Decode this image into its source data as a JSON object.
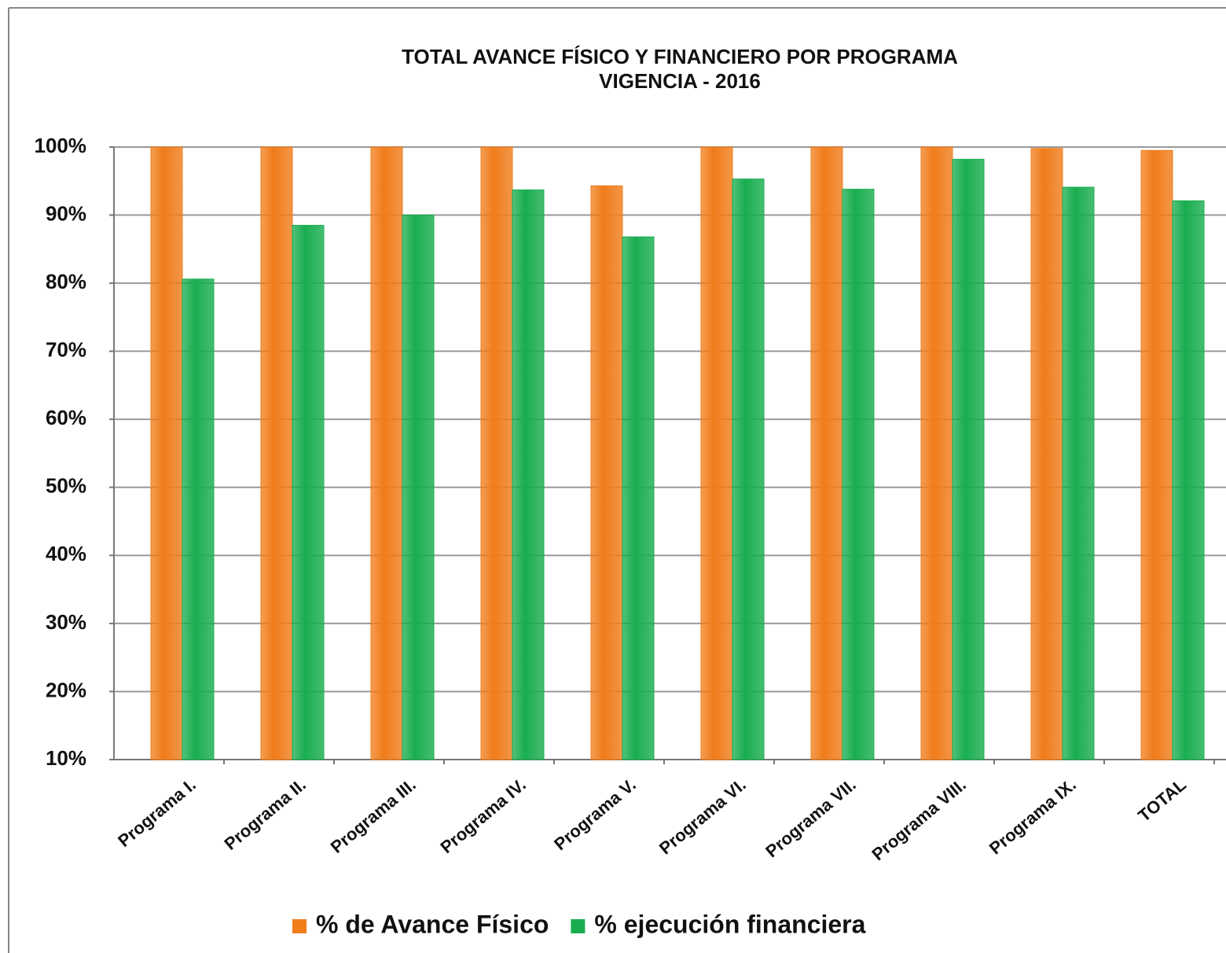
{
  "chart_data": {
    "type": "bar",
    "title": "TOTAL AVANCE FÍSICO Y FINANCIERO POR PROGRAMA",
    "subtitle": "VIGENCIA  - 2016",
    "categories": [
      "Programa I.",
      "Programa II.",
      "Programa III.",
      "Programa IV.",
      "Programa V.",
      "Programa VI.",
      "Programa VII.",
      "Programa VIII.",
      "Programa IX.",
      "TOTAL"
    ],
    "series": [
      {
        "name": "% de Avance Físico",
        "color": "#f07c1a",
        "values": [
          100,
          100,
          100,
          100,
          94.3,
          100,
          100,
          100,
          99.8,
          99.5
        ]
      },
      {
        "name": "% ejecución financiera",
        "color": "#19ad4f",
        "values": [
          80.6,
          88.5,
          90,
          93.7,
          86.8,
          95.3,
          93.8,
          98.2,
          94.1,
          92.1
        ]
      }
    ],
    "ylim": [
      10,
      100
    ],
    "yticks": [
      {
        "value": 10,
        "label": "10%"
      },
      {
        "value": 20,
        "label": "20%"
      },
      {
        "value": 30,
        "label": "30%"
      },
      {
        "value": 40,
        "label": "40%"
      },
      {
        "value": 50,
        "label": "50%"
      },
      {
        "value": 60,
        "label": "60%"
      },
      {
        "value": 70,
        "label": "70%"
      },
      {
        "value": 80,
        "label": "80%"
      },
      {
        "value": 90,
        "label": "90%"
      },
      {
        "value": 100,
        "label": "100%"
      }
    ],
    "grid": true,
    "legend": "bottom"
  }
}
